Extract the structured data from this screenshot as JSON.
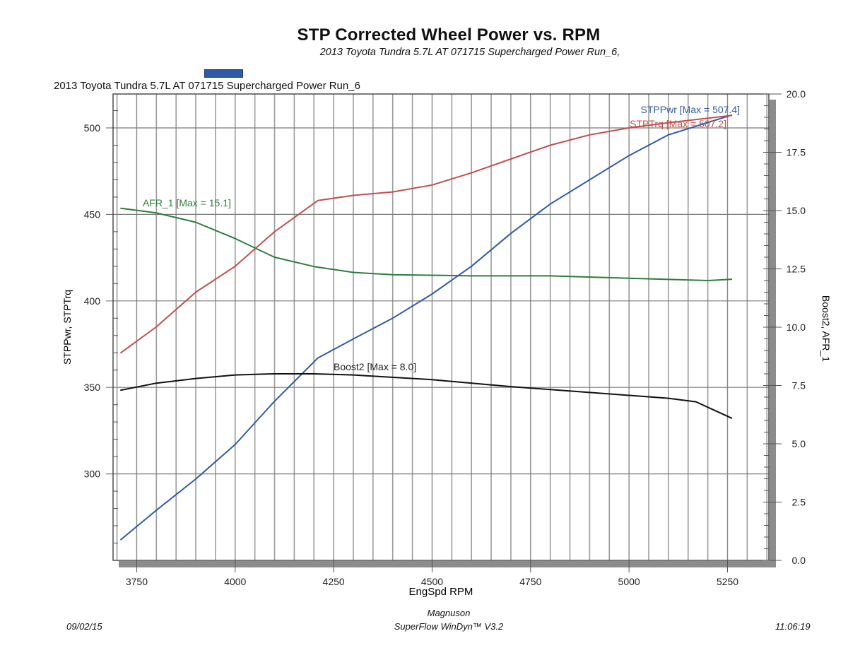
{
  "header": {
    "title": "STP Corrected Wheel Power vs. RPM",
    "subtitle": "2013 Toyota Tundra 5.7L AT 071715 Supercharged Power Run_6,",
    "legend_label": "2013 Toyota Tundra 5.7L AT 071715 Supercharged Power Run_6",
    "legend_color": "#2f5aa8"
  },
  "footer": {
    "date": "09/02/15",
    "company": "Magnuson",
    "software": "SuperFlow WinDyn™ V3.2",
    "time": "11:06:19"
  },
  "chart_data": {
    "type": "line",
    "title": "STP Corrected Wheel Power vs. RPM",
    "subtitle": "2013 Toyota Tundra 5.7L AT 071715 Supercharged Power Run_6,",
    "xlabel": "EngSpd RPM",
    "ylabel": "STPPwr, STPTrq",
    "y2label": "Boost2, AFR_1",
    "xlim": [
      3690,
      5355
    ],
    "ylim": [
      250,
      519.6
    ],
    "y2lim": [
      0,
      20
    ],
    "x_ticks": [
      3750,
      4000,
      4250,
      4500,
      4750,
      5000,
      5250
    ],
    "x_tick_labels": [
      "3750",
      "4000",
      "4250",
      "4500",
      "4750",
      "5000",
      "5250"
    ],
    "y_ticks": [
      300,
      350,
      400,
      450,
      500
    ],
    "y_tick_labels": [
      "300",
      "350",
      "400",
      "450",
      "500"
    ],
    "y2_ticks": [
      0,
      2.5,
      5,
      7.5,
      10,
      12.5,
      15,
      17.5,
      20
    ],
    "y2_tick_labels": [
      "0.0",
      "2.5",
      "5.0",
      "7.5",
      "10.0",
      "12.5",
      "15.0",
      "17.5",
      "20.0"
    ],
    "grid": true,
    "series": [
      {
        "name": "STPPwr",
        "label": "STPPwr [Max = 507.4]",
        "axis": "left",
        "color": "#2f5aa8",
        "x": [
          3710,
          3800,
          3900,
          4000,
          4100,
          4210,
          4300,
          4400,
          4500,
          4600,
          4700,
          4800,
          4900,
          5000,
          5100,
          5260
        ],
        "y": [
          262,
          279,
          297,
          317,
          342,
          367,
          378,
          390,
          404,
          420,
          439,
          456,
          470,
          484,
          496,
          507.4
        ]
      },
      {
        "name": "STPTrq",
        "label": "STPTrq [Max = 507.2]",
        "axis": "left",
        "color": "#c0504d",
        "x": [
          3710,
          3800,
          3900,
          4000,
          4100,
          4210,
          4300,
          4400,
          4500,
          4600,
          4700,
          4800,
          4900,
          5000,
          5100,
          5260
        ],
        "y": [
          370,
          385,
          405,
          420,
          440,
          458,
          461,
          463,
          467,
          474,
          482,
          490,
          496,
          500,
          503,
          507.2
        ]
      },
      {
        "name": "AFR_1",
        "label": "AFR_1  [Max = 15.1]",
        "axis": "right",
        "color": "#2e7d3e",
        "x": [
          3710,
          3800,
          3900,
          4000,
          4100,
          4200,
          4300,
          4400,
          4600,
          4800,
          5000,
          5200,
          5260
        ],
        "y": [
          15.1,
          14.9,
          14.5,
          13.8,
          13.0,
          12.6,
          12.35,
          12.25,
          12.2,
          12.2,
          12.1,
          12.0,
          12.05
        ]
      },
      {
        "name": "Boost2",
        "label": "Boost2 [Max = 8.0]",
        "axis": "right",
        "color": "#111111",
        "x": [
          3710,
          3800,
          3900,
          4000,
          4100,
          4200,
          4300,
          4500,
          4700,
          4900,
          5100,
          5170,
          5260
        ],
        "y": [
          7.3,
          7.6,
          7.8,
          7.95,
          8.0,
          8.0,
          7.95,
          7.75,
          7.45,
          7.2,
          6.95,
          6.8,
          6.1
        ]
      }
    ]
  }
}
